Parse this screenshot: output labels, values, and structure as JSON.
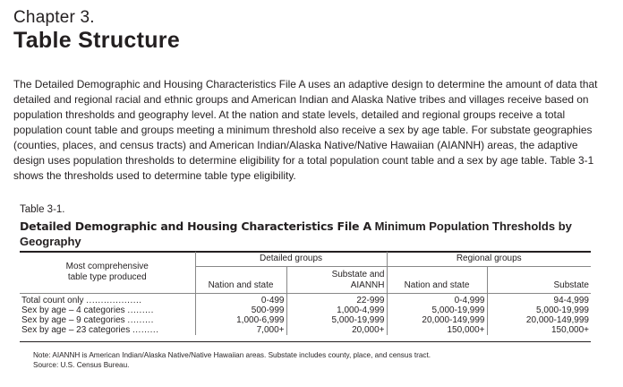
{
  "chapter": {
    "label": "Chapter 3.",
    "title": "Table Structure"
  },
  "body_text": "The Detailed Demographic and Housing Characteristics File A uses an adaptive design to determine the amount of data that detailed and regional racial and ethnic groups and American Indian and Alaska Native tribes and villages receive based on population thresholds and geography level. At the nation and state levels, detailed and regional groups receive a total population count table and groups meeting a minimum threshold also receive a sex by age table. For substate geographies (counties, places, and census tracts) and American Indian/Alaska Native/Native Hawaiian (AIANNH) areas, the adaptive design uses population thresholds to determine eligibility for a total population count table and a sex by age table. Table 3-1 shows the thresholds used to determine table type eligibility.",
  "table": {
    "number": "Table 3-1.",
    "title_strong": "Detailed Demographic and Housing Characteristics File A",
    "title_rest": " Minimum Population Thresholds by Geography",
    "stub_header_line1": "Most comprehensive",
    "stub_header_line2": "table type produced",
    "group_detailed": "Detailed groups",
    "group_regional": "Regional groups",
    "col_detailed_nation": "Nation and state",
    "col_detailed_substate_line1": "Substate and",
    "col_detailed_substate_line2": "AIANNH",
    "col_regional_nation": "Nation and state",
    "col_regional_substate": "Substate",
    "rows": [
      {
        "label": "Total count only",
        "dots": "...................",
        "c1": "0-499",
        "c2": "22-999",
        "c3": "0-4,999",
        "c4": "94-4,999"
      },
      {
        "label": "Sex by age – 4 categories",
        "dots": ".........",
        "c1": "500-999",
        "c2": "1,000-4,999",
        "c3": "5,000-19,999",
        "c4": "5,000-19,999"
      },
      {
        "label": "Sex by age – 9 categories",
        "dots": ".........",
        "c1": "1,000-6,999",
        "c2": "5,000-19,999",
        "c3": "20,000-149,999",
        "c4": "20,000-149,999"
      },
      {
        "label": "Sex by age – 23 categories",
        "dots": ".........",
        "c1": "7,000+",
        "c2": "20,000+",
        "c3": "150,000+",
        "c4": "150,000+"
      }
    ]
  },
  "note": {
    "line1": "Note: AIANNH is American Indian/Alaska Native/Native Hawaiian areas. Substate includes county, place, and census tract.",
    "line2": "Source: U.S. Census Bureau."
  }
}
